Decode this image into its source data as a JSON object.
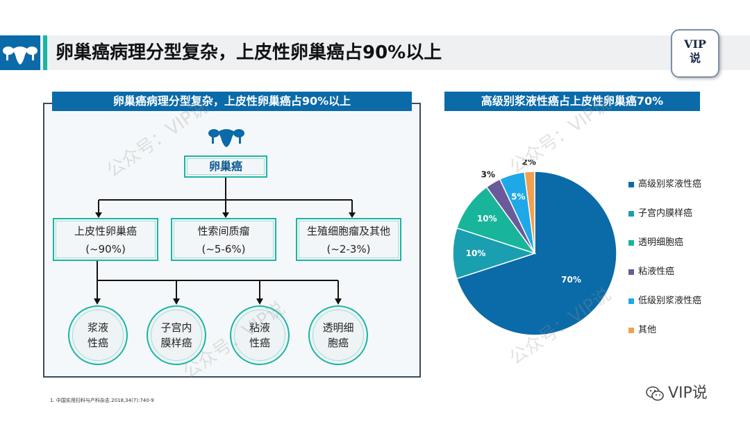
{
  "header": {
    "title": "卵巢癌病理分型复杂，上皮性卵巢癌占90%以上",
    "badge_line1": "VIP",
    "badge_line2": "说"
  },
  "left": {
    "banner": "卵巢癌病理分型复杂，上皮性卵巢癌占90%以上",
    "root": "卵巢癌",
    "level1": [
      {
        "name": "上皮性卵巢癌",
        "pct": "(~90%)"
      },
      {
        "name": "性索间质瘤",
        "pct": "(~5-6%)"
      },
      {
        "name": "生殖细胞瘤及其他",
        "pct": "(~2-3%)"
      }
    ],
    "level2": [
      {
        "line1": "浆液",
        "line2": "性癌"
      },
      {
        "line1": "子宫内",
        "line2": "膜样癌"
      },
      {
        "line1": "粘液",
        "line2": "性癌"
      },
      {
        "line1": "透明细",
        "line2": "胞癌"
      }
    ]
  },
  "right": {
    "banner": "高级别浆液性癌占上皮性卵巢癌70%"
  },
  "chart_data": {
    "type": "pie",
    "slices": [
      {
        "label": "高级别浆液性癌",
        "value": 70,
        "display": "70%",
        "color": "#0b6aa8"
      },
      {
        "label": "子宫内膜样癌",
        "value": 10,
        "display": "10%",
        "color": "#1a9fb0"
      },
      {
        "label": "透明细胞癌",
        "value": 10,
        "display": "10%",
        "color": "#18b59b"
      },
      {
        "label": "粘液性癌",
        "value": 3,
        "display": "3%",
        "color": "#6a5a9a"
      },
      {
        "label": "低级别浆液性癌",
        "value": 5,
        "display": "5%",
        "color": "#1ea8e8"
      },
      {
        "label": "其他",
        "value": 2,
        "display": "2%",
        "color": "#f0a050"
      }
    ],
    "legend_position": "right"
  },
  "footnote": "1. 中国实用妇科与产科杂志.2018,34(7):740-9",
  "brand": "VIP说",
  "watermark": "公众号：VIP说",
  "colors": {
    "primary": "#0b6aa8",
    "accent": "#1bb5a4"
  }
}
